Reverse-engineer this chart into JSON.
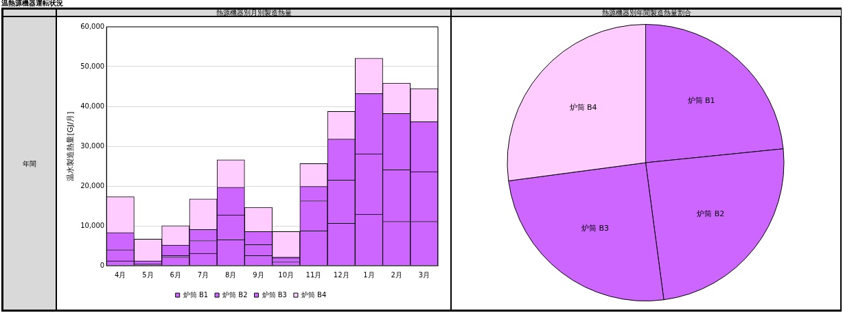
{
  "chart_data": [
    {
      "type": "bar",
      "title": "熱源機器別月別製造熱量",
      "ylabel": "温水製造熱量[GJ/月]",
      "annotations": [
        "温熱源機器運転状況",
        "年間"
      ],
      "stacked": true,
      "grid": "y",
      "legend": "bottom",
      "categories": [
        "4月",
        "5月",
        "6月",
        "7月",
        "8月",
        "9月",
        "10月",
        "11月",
        "12月",
        "1月",
        "2月",
        "3月"
      ],
      "series": [
        {
          "name": "炉筒 B1",
          "color": "#cc66ff",
          "values": [
            1200,
            400,
            2150,
            3100,
            6500,
            2550,
            950,
            8750,
            10650,
            12900,
            11100,
            11100
          ]
        },
        {
          "name": "炉筒 B2",
          "color": "#cc66ff",
          "values": [
            2800,
            800,
            400,
            3200,
            6250,
            2750,
            1000,
            7550,
            10850,
            15200,
            13000,
            12500
          ]
        },
        {
          "name": "炉筒 B3",
          "color": "#cc66ff",
          "values": [
            4300,
            0,
            2600,
            2800,
            6950,
            3250,
            200,
            3600,
            10300,
            15100,
            14100,
            12550
          ]
        },
        {
          "name": "炉筒 B4",
          "color": "#ffccff",
          "values": [
            9000,
            5450,
            4900,
            7650,
            6900,
            6100,
            6400,
            5750,
            6950,
            8900,
            7650,
            8300
          ]
        }
      ],
      "ylim": [
        0,
        60000
      ],
      "yticks": [
        0,
        {
          "value": 10000,
          "label": "10,000"
        },
        {
          "value": 20000,
          "label": "20,000"
        },
        {
          "value": 30000,
          "label": "30,000"
        },
        {
          "value": 40000,
          "label": "40,000"
        },
        {
          "value": 50000,
          "label": "50,000"
        },
        {
          "value": 60000,
          "label": "60,000"
        }
      ]
    },
    {
      "type": "pie",
      "title": "熱源機器別年間製造熱量割合",
      "categories": [
        "炉筒 B1",
        "炉筒 B2",
        "炉筒 B3",
        "炉筒 B4"
      ],
      "values": [
        23.4,
        24.5,
        25.0,
        27.1
      ],
      "colors": [
        "#cc66ff",
        "#cc66ff",
        "#cc66ff",
        "#ffccff"
      ]
    }
  ]
}
